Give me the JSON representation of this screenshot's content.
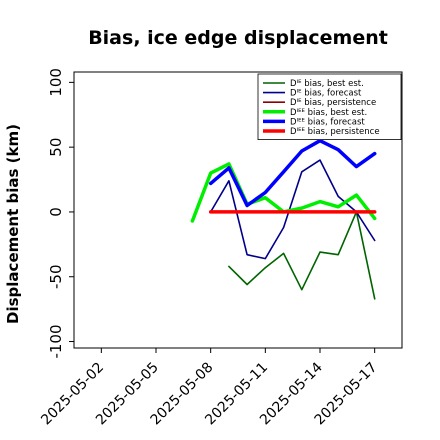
{
  "chart_data": {
    "type": "line",
    "title": "Bias, ice edge displacement",
    "ylabel": "Displacement bias (km)",
    "xlabel": "",
    "ylim": [
      -105,
      108
    ],
    "yticks": [
      -100,
      -50,
      0,
      50,
      100
    ],
    "x_dates": [
      "2025-05-01",
      "2025-05-02",
      "2025-05-03",
      "2025-05-04",
      "2025-05-05",
      "2025-05-06",
      "2025-05-07",
      "2025-05-08",
      "2025-05-09",
      "2025-05-10",
      "2025-05-11",
      "2025-05-12",
      "2025-05-13",
      "2025-05-14",
      "2025-05-15",
      "2025-05-16",
      "2025-05-17",
      "2025-05-18"
    ],
    "xticks": [
      "2025-05-02",
      "2025-05-05",
      "2025-05-08",
      "2025-05-11",
      "2025-05-14",
      "2025-05-17"
    ],
    "highlight_tick": "2025-05-08",
    "highlight_color": "#228b22",
    "grid": false,
    "legend_position": "top-right",
    "series": [
      {
        "name": "Dᴵᴱ bias, best est.",
        "color": "#006400",
        "width": 1.6,
        "x": [
          "2025-05-09",
          "2025-05-10",
          "2025-05-11",
          "2025-05-12",
          "2025-05-13",
          "2025-05-14",
          "2025-05-15",
          "2025-05-16",
          "2025-05-17"
        ],
        "y": [
          -42,
          -56,
          -43,
          -32,
          -60,
          -31,
          -33,
          0,
          -67
        ]
      },
      {
        "name": "Dᴵᴱ bias, forecast",
        "color": "#00008b",
        "width": 1.6,
        "x": [
          "2025-05-08",
          "2025-05-09",
          "2025-05-10",
          "2025-05-11",
          "2025-05-12",
          "2025-05-13",
          "2025-05-14",
          "2025-05-15",
          "2025-05-16",
          "2025-05-17"
        ],
        "y": [
          0,
          24,
          -33,
          -36,
          -12,
          31,
          40,
          12,
          0,
          -22
        ]
      },
      {
        "name": "Dᴵᴱ bias, persistence",
        "color": "#8b0000",
        "width": 1.6,
        "x": [
          "2025-05-08",
          "2025-05-17"
        ],
        "y": [
          0,
          0
        ]
      },
      {
        "name": "Dᴵᴱᴱ bias, best est.",
        "color": "#00ee00",
        "width": 3.5,
        "x": [
          "2025-05-07",
          "2025-05-08",
          "2025-05-09",
          "2025-05-10",
          "2025-05-11",
          "2025-05-12",
          "2025-05-13",
          "2025-05-14",
          "2025-05-15",
          "2025-05-16",
          "2025-05-17"
        ],
        "y": [
          -7,
          30,
          37,
          6,
          11,
          0,
          3,
          8,
          4,
          13,
          -5
        ]
      },
      {
        "name": "Dᴵᴱᴱ bias, forecast",
        "color": "#0000ff",
        "width": 3.5,
        "x": [
          "2025-05-08",
          "2025-05-09",
          "2025-05-10",
          "2025-05-11",
          "2025-05-12",
          "2025-05-13",
          "2025-05-14",
          "2025-05-15",
          "2025-05-16",
          "2025-05-17"
        ],
        "y": [
          22,
          34,
          5,
          15,
          31,
          47,
          55,
          48,
          35,
          45
        ]
      },
      {
        "name": "Dᴵᴱᴱ bias, persistence",
        "color": "#ff0000",
        "width": 3.5,
        "x": [
          "2025-05-08",
          "2025-05-17"
        ],
        "y": [
          0,
          0
        ]
      }
    ]
  }
}
